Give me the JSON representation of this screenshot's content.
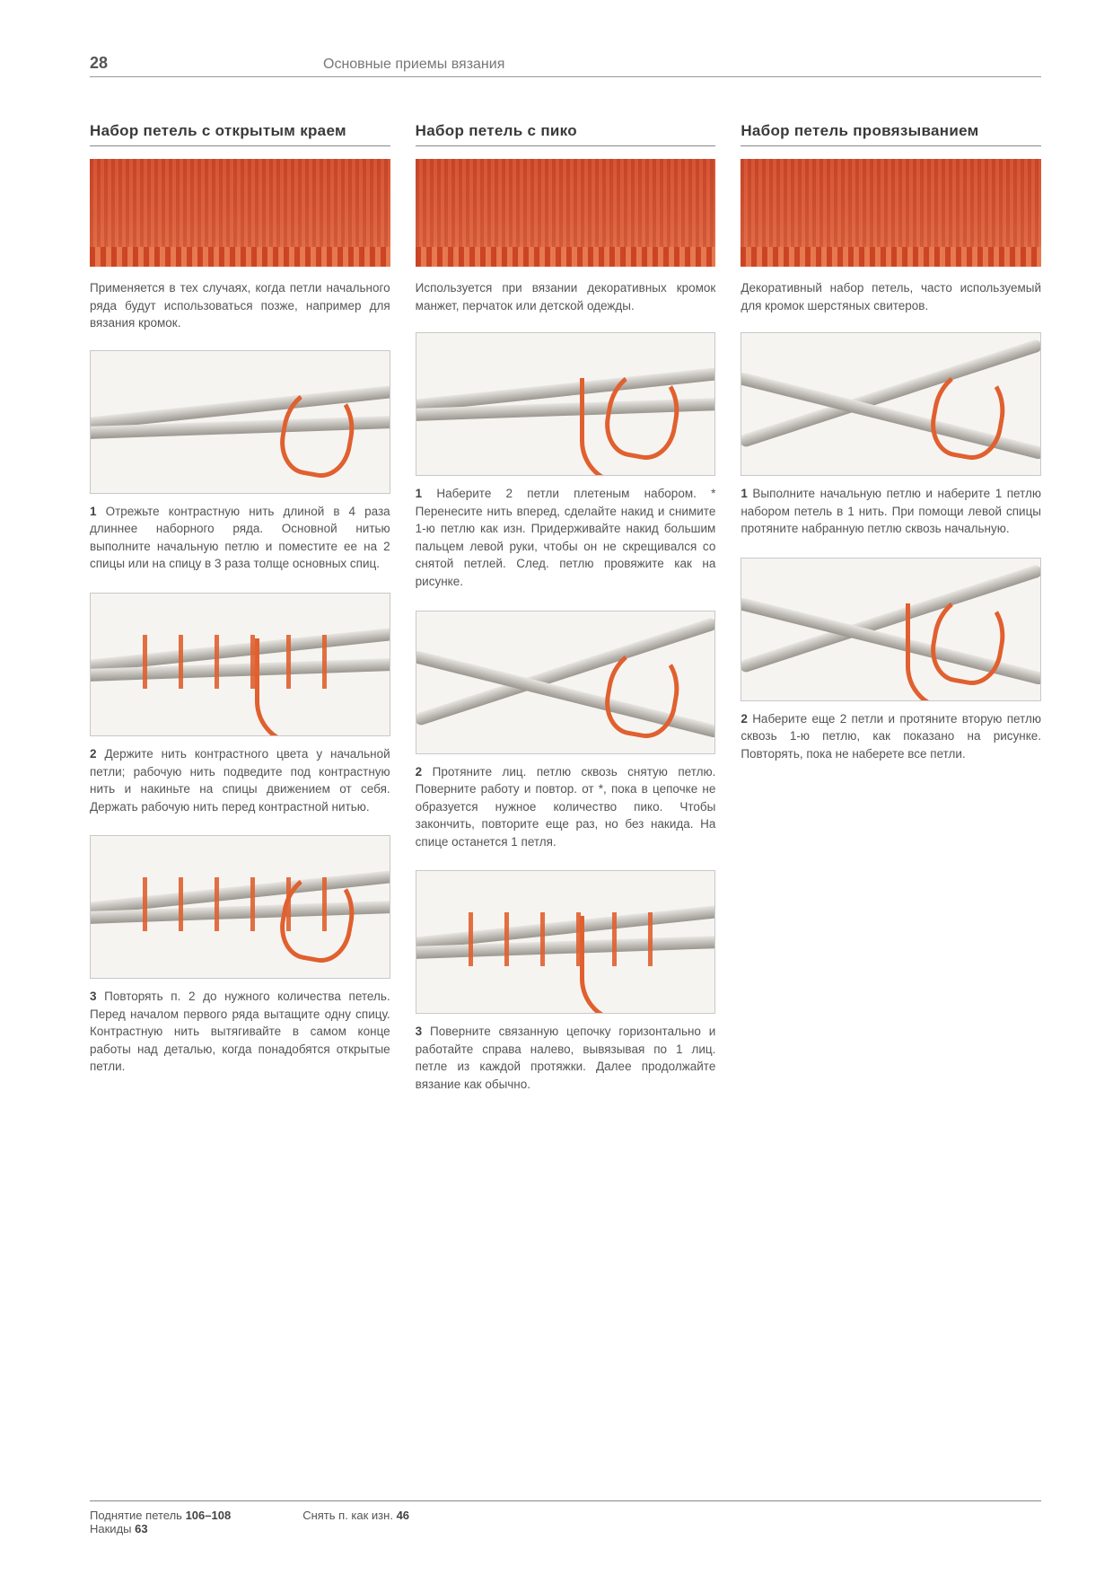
{
  "page_number": "28",
  "chapter_title": "Основные приемы вязания",
  "swatch_color": "#d54a2a",
  "columns": [
    {
      "title": "Набор петель с открытым краем",
      "intro": "Применяется в тех случаях, когда петли начального ряда будут использоваться позже, например для вязания кромок.",
      "steps": [
        {
          "num": "1",
          "text": "Отрежьте контрастную нить длиной в 4 раза длиннее наборного ряда. Основной нитью выполните начальную петлю и поместите ее на 2 спицы или на спицу в 3 раза толще основных спиц."
        },
        {
          "num": "2",
          "text": "Держите нить контрастного цвета у начальной петли; рабочую нить подведите под контрастную нить и накиньте на спицы движением от себя. Держать рабочую нить перед контрастной нитью."
        },
        {
          "num": "3",
          "text": "Повторять п. 2 до нужного количества петель. Перед началом первого ряда вытащите одну спицу. Контрастную нить вытягивайте в самом конце работы над деталью, когда понадобятся открытые петли."
        }
      ]
    },
    {
      "title": "Набор петель с пико",
      "intro": "Используется при вязании декоративных кромок манжет, перчаток или детской одежды.",
      "steps": [
        {
          "num": "1",
          "text": "Наберите 2 петли плетеным набором. * Перенесите нить вперед, сделайте накид и снимите 1-ю петлю как изн. Придерживайте накид большим пальцем левой руки, чтобы он не скрещивался со снятой петлей. След. петлю провяжите как на рисунке."
        },
        {
          "num": "2",
          "text": "Протяните лиц. петлю сквозь снятую петлю. Поверните работу и повтор. от *, пока в цепочке не образуется нужное количество пико. Чтобы закончить, повторите еще раз, но без накида. На спице останется 1 петля."
        },
        {
          "num": "3",
          "text": "Поверните связанную цепочку горизонтально и работайте справа налево, вывязывая по 1 лиц. петле из каждой протяжки. Далее продолжайте вязание как обычно."
        }
      ]
    },
    {
      "title": "Набор петель провязыванием",
      "intro": "Декоративный набор петель, часто используемый для кромок шерстяных свитеров.",
      "steps": [
        {
          "num": "1",
          "text": "Выполните начальную петлю и наберите 1 петлю набором петель в 1 нить. При помощи левой спицы протяните набранную петлю сквозь начальную."
        },
        {
          "num": "2",
          "text": "Наберите еще 2 петли и протяните вторую петлю сквозь 1-ю петлю, как показано на рисунке. Повторять, пока не наберете все петли."
        }
      ]
    }
  ],
  "footer": {
    "left_line1_label": "Поднятие петель",
    "left_line1_pages": "106–108",
    "left_line2_label": "Накиды",
    "left_line2_pages": "63",
    "right_label": "Снять п. как изн.",
    "right_pages": "46"
  }
}
